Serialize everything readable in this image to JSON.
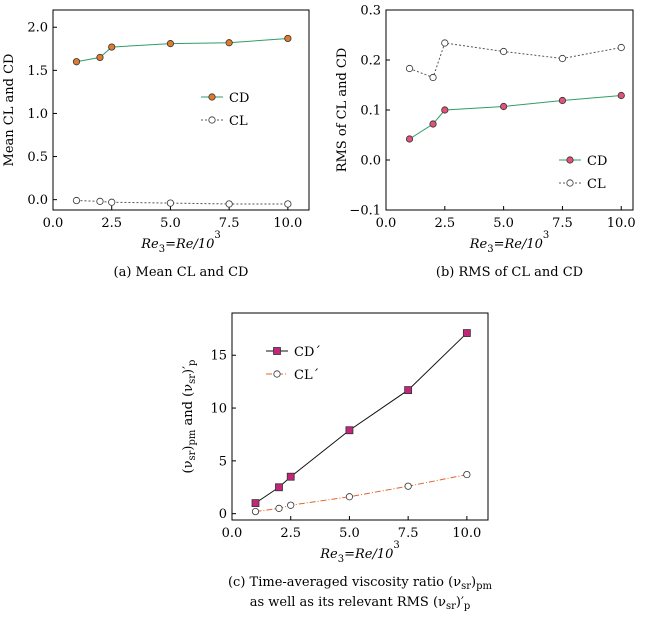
{
  "chart_data": [
    {
      "type": "line",
      "x": [
        1,
        2,
        2.5,
        5,
        7.5,
        10
      ],
      "xlim": [
        0,
        10.9
      ],
      "ylim": [
        -0.12,
        2.2
      ],
      "xticks": [
        0.0,
        2.5,
        5.0,
        7.5,
        10.0
      ],
      "xtick_labels": [
        "0.0",
        "2.5",
        "5.0",
        "7.5",
        "10.0"
      ],
      "yticks": [
        0.0,
        0.5,
        1.0,
        1.5,
        2.0
      ],
      "ytick_labels": [
        "0.0",
        "0.5",
        "1.0",
        "1.5",
        "2.0"
      ],
      "ylabel": "Mean CL and CD",
      "xlabel": "Re3=Re/10^3",
      "caption": "(a) Mean CL and CD",
      "legend_position": "center-right",
      "grid": false,
      "series": [
        {
          "name": "CD",
          "values": [
            1.6,
            1.65,
            1.77,
            1.81,
            1.82,
            1.87
          ],
          "color": "#e07b2c",
          "line": "#2e9e6a",
          "marker": "circle-filled",
          "dash": false
        },
        {
          "name": "CL",
          "values": [
            -0.01,
            -0.02,
            -0.03,
            -0.04,
            -0.05,
            -0.05
          ],
          "color": "#ffffff",
          "line": "#555555",
          "marker": "circle-open",
          "dash": true
        }
      ]
    },
    {
      "type": "line",
      "x": [
        1,
        2,
        2.5,
        5,
        7.5,
        10
      ],
      "xlim": [
        0,
        10.5
      ],
      "ylim": [
        -0.1,
        0.3
      ],
      "xticks": [
        0.0,
        2.5,
        5.0,
        7.5,
        10.0
      ],
      "xtick_labels": [
        "0.0",
        "2.5",
        "5.0",
        "7.5",
        "10.0"
      ],
      "yticks": [
        -0.1,
        0.0,
        0.1,
        0.2,
        0.3
      ],
      "ytick_labels": [
        "−0.1",
        "0.0",
        "0.1",
        "0.2",
        "0.3"
      ],
      "ylabel": "RMS of CL and CD",
      "xlabel": "Re3=Re/10^3",
      "caption": "(b) RMS of CL and CD",
      "legend_position": "bottom-right",
      "grid": false,
      "series": [
        {
          "name": "CD",
          "values": [
            0.042,
            0.072,
            0.1,
            0.107,
            0.119,
            0.129
          ],
          "color": "#e0527a",
          "line": "#2e9e6a",
          "marker": "circle-filled",
          "dash": false
        },
        {
          "name": "CL",
          "values": [
            0.183,
            0.165,
            0.234,
            0.217,
            0.203,
            0.225
          ],
          "color": "#ffffff",
          "line": "#555555",
          "marker": "circle-open",
          "dash": true
        }
      ]
    },
    {
      "type": "line",
      "x": [
        1,
        2,
        2.5,
        5,
        7.5,
        10
      ],
      "xlim": [
        0,
        10.9
      ],
      "ylim": [
        -0.6,
        19
      ],
      "xticks": [
        0.0,
        2.5,
        5.0,
        7.5,
        10.0
      ],
      "xtick_labels": [
        "0.0",
        "2.5",
        "5.0",
        "7.5",
        "10.0"
      ],
      "yticks": [
        0,
        5,
        10,
        15
      ],
      "ytick_labels": [
        "0",
        "5",
        "10",
        "15"
      ],
      "ylabel": "(νsr)pm and (νsr)′p",
      "xlabel": "Re3=Re/10^3",
      "caption_line1": "(c) Time-averaged viscosity ratio (νsr)pm",
      "caption_line2": "as well as its relevant RMS (νsr)′p",
      "legend_position": "top-left",
      "grid": false,
      "series": [
        {
          "name": "CD´",
          "values": [
            1.0,
            2.5,
            3.5,
            7.9,
            11.7,
            17.1
          ],
          "color": "#c2267a",
          "line": "#111111",
          "marker": "square-filled",
          "dash": false
        },
        {
          "name": "CL´",
          "values": [
            0.2,
            0.5,
            0.8,
            1.6,
            2.6,
            3.7
          ],
          "color": "#ffffff",
          "line": "#e0642c",
          "marker": "circle-open",
          "dash": true
        }
      ]
    }
  ]
}
